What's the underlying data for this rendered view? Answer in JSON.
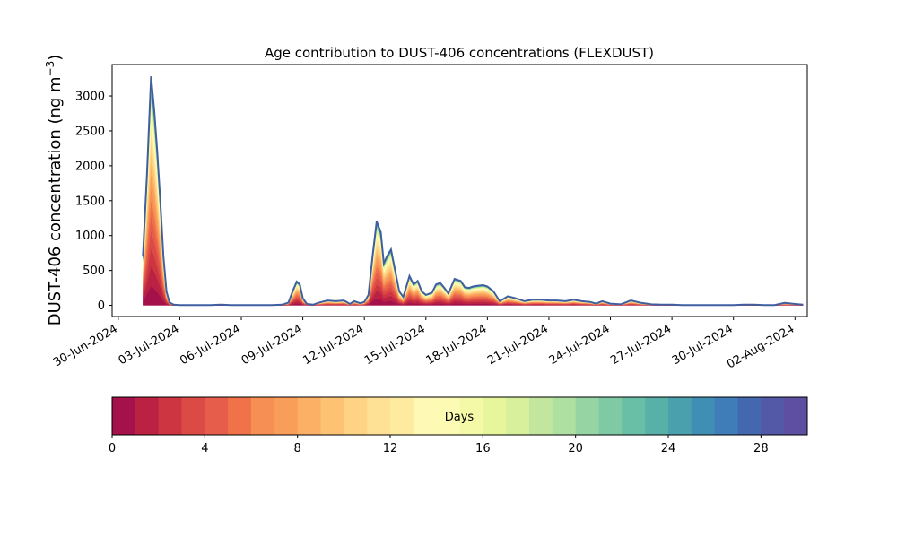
{
  "chart_data": [
    {
      "type": "area",
      "title": "Age contribution to DUST-406 concentrations (FLEXDUST)",
      "xlabel": "",
      "ylabel": "DUST-406 concentration (ng m",
      "ylabel_sup": "−3",
      "ylabel_close": ")",
      "stacked": true,
      "x_ticks": [
        "30-Jun-2024",
        "03-Jul-2024",
        "06-Jul-2024",
        "09-Jul-2024",
        "12-Jul-2024",
        "15-Jul-2024",
        "18-Jul-2024",
        "21-Jul-2024",
        "24-Jul-2024",
        "27-Jul-2024",
        "30-Jul-2024",
        "02-Aug-2024"
      ],
      "y_ticks": [
        0,
        500,
        1000,
        1500,
        2000,
        2500,
        3000
      ],
      "xlim_days_from_30_jun": [
        -0.3,
        33.6
      ],
      "ylim": [
        -160,
        3450
      ],
      "total_series": {
        "name": "total",
        "color": "#3f5fa0",
        "x_days_from_30_jun": [
          1.2,
          1.4,
          1.6,
          1.75,
          1.9,
          2.05,
          2.2,
          2.35,
          2.5,
          2.7,
          3.0,
          3.5,
          4.0,
          4.5,
          5.0,
          5.5,
          6.0,
          6.5,
          7.0,
          7.5,
          8.0,
          8.3,
          8.5,
          8.7,
          8.85,
          9.0,
          9.2,
          9.5,
          9.8,
          10.2,
          10.6,
          11.0,
          11.3,
          11.5,
          11.8,
          12.0,
          12.2,
          12.4,
          12.6,
          12.8,
          12.95,
          13.1,
          13.3,
          13.5,
          13.7,
          13.9,
          14.2,
          14.4,
          14.6,
          14.8,
          15.0,
          15.3,
          15.5,
          15.7,
          15.9,
          16.1,
          16.4,
          16.7,
          16.9,
          17.1,
          17.3,
          17.5,
          17.8,
          18.0,
          18.3,
          18.6,
          19.0,
          19.4,
          19.8,
          20.2,
          20.6,
          21.0,
          21.4,
          21.8,
          22.2,
          22.6,
          23.0,
          23.3,
          23.6,
          24.0,
          24.5,
          25.0,
          25.5,
          26.0,
          26.5,
          27.0,
          27.5,
          28.0,
          28.5,
          29.0,
          29.3,
          29.6,
          30.0,
          30.5,
          31.0,
          31.5,
          32.0,
          32.5,
          33.0,
          33.4
        ],
        "values": [
          700,
          1900,
          3280,
          2800,
          2200,
          1500,
          700,
          200,
          40,
          10,
          5,
          5,
          5,
          5,
          10,
          5,
          5,
          5,
          5,
          5,
          10,
          40,
          200,
          340,
          300,
          100,
          20,
          10,
          40,
          70,
          60,
          70,
          20,
          60,
          30,
          50,
          150,
          700,
          1200,
          1050,
          600,
          700,
          800,
          500,
          200,
          120,
          420,
          300,
          350,
          200,
          150,
          180,
          300,
          320,
          250,
          170,
          380,
          350,
          260,
          250,
          270,
          280,
          290,
          270,
          200,
          60,
          130,
          100,
          60,
          80,
          80,
          70,
          70,
          60,
          80,
          60,
          50,
          25,
          60,
          25,
          15,
          70,
          35,
          15,
          10,
          10,
          5,
          5,
          5,
          5,
          5,
          5,
          5,
          10,
          10,
          5,
          5,
          35,
          20,
          10
        ]
      },
      "age_fractions_per_day_bin": [
        0.09,
        0.09,
        0.08,
        0.08,
        0.07,
        0.07,
        0.06,
        0.06,
        0.05,
        0.05,
        0.05,
        0.04,
        0.04,
        0.03,
        0.03,
        0.02,
        0.02,
        0.02,
        0.01,
        0.01,
        0.01,
        0.01,
        0.01,
        0.01,
        0.01,
        0.005,
        0.005,
        0.004,
        0.003,
        0.002
      ],
      "colorbar": {
        "label": "Days",
        "ticks": [
          0,
          4,
          8,
          12,
          16,
          20,
          24,
          28
        ],
        "range": [
          0,
          30
        ],
        "colors": [
          "#a5114a",
          "#bb2142",
          "#cd3541",
          "#db4a45",
          "#e65d4b",
          "#ef7249",
          "#f68f53",
          "#f99d5a",
          "#fcb065",
          "#fdc373",
          "#fed484",
          "#fee195",
          "#feeba0",
          "#fff9b6",
          "#fdfab4",
          "#f4f9a8",
          "#e7f59b",
          "#d8ef9c",
          "#c3e69f",
          "#ade0a1",
          "#96d4a3",
          "#7fcaa4",
          "#69bfa5",
          "#57b1a8",
          "#4ba0ad",
          "#3f8eb3",
          "#3f7db8",
          "#4468b0",
          "#5359a7",
          "#5e4fa2"
        ]
      }
    }
  ]
}
